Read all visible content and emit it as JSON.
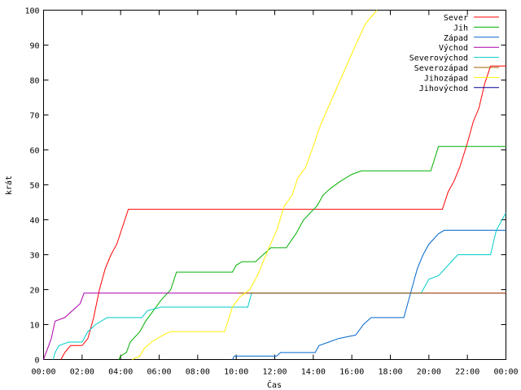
{
  "chart_data": {
    "type": "line",
    "title": "",
    "xlabel": "Čas",
    "ylabel": "krát",
    "xlim": [
      0,
      24
    ],
    "ylim": [
      0,
      100
    ],
    "x_ticks": [
      {
        "value": 0,
        "label": "00:00"
      },
      {
        "value": 2,
        "label": "02:00"
      },
      {
        "value": 4,
        "label": "04:00"
      },
      {
        "value": 6,
        "label": "06:00"
      },
      {
        "value": 8,
        "label": "08:00"
      },
      {
        "value": 10,
        "label": "10:00"
      },
      {
        "value": 12,
        "label": "12:00"
      },
      {
        "value": 14,
        "label": "14:00"
      },
      {
        "value": 16,
        "label": "16:00"
      },
      {
        "value": 18,
        "label": "18:00"
      },
      {
        "value": 20,
        "label": "20:00"
      },
      {
        "value": 22,
        "label": "22:00"
      },
      {
        "value": 24,
        "label": "00:00"
      }
    ],
    "y_ticks": [
      {
        "value": 0,
        "label": "0"
      },
      {
        "value": 10,
        "label": "10"
      },
      {
        "value": 20,
        "label": "20"
      },
      {
        "value": 30,
        "label": "30"
      },
      {
        "value": 40,
        "label": "40"
      },
      {
        "value": 50,
        "label": "50"
      },
      {
        "value": 60,
        "label": "60"
      },
      {
        "value": 70,
        "label": "70"
      },
      {
        "value": 80,
        "label": "80"
      },
      {
        "value": 90,
        "label": "90"
      },
      {
        "value": 100,
        "label": "100"
      }
    ],
    "grid": false,
    "legend_position": "top-right",
    "series": [
      {
        "name": "Sever",
        "color": "#ff0000",
        "points": [
          [
            0.9,
            0
          ],
          [
            1.1,
            2
          ],
          [
            1.4,
            4
          ],
          [
            2.0,
            4
          ],
          [
            2.3,
            6
          ],
          [
            2.6,
            12
          ],
          [
            2.9,
            20
          ],
          [
            3.2,
            26
          ],
          [
            3.5,
            30
          ],
          [
            3.8,
            33
          ],
          [
            4.1,
            38
          ],
          [
            4.4,
            43
          ],
          [
            13.2,
            43
          ],
          [
            20.7,
            43
          ],
          [
            21.0,
            48
          ],
          [
            21.3,
            51
          ],
          [
            21.6,
            55
          ],
          [
            22.0,
            62
          ],
          [
            22.3,
            68
          ],
          [
            22.6,
            72
          ],
          [
            22.9,
            79
          ],
          [
            23.2,
            84
          ],
          [
            24,
            84
          ]
        ]
      },
      {
        "name": "Jih",
        "color": "#00b000",
        "points": [
          [
            3.9,
            0
          ],
          [
            4.0,
            1
          ],
          [
            4.3,
            2
          ],
          [
            4.5,
            5
          ],
          [
            5.0,
            8
          ],
          [
            5.3,
            11
          ],
          [
            5.7,
            14
          ],
          [
            6.1,
            17
          ],
          [
            6.6,
            20
          ],
          [
            6.9,
            25
          ],
          [
            9.8,
            25
          ],
          [
            10.0,
            27
          ],
          [
            10.3,
            28
          ],
          [
            11.0,
            28
          ],
          [
            11.4,
            30
          ],
          [
            11.8,
            32
          ],
          [
            12.6,
            32
          ],
          [
            13.1,
            36
          ],
          [
            13.5,
            40
          ],
          [
            14.2,
            44
          ],
          [
            14.5,
            47
          ],
          [
            14.9,
            49
          ],
          [
            15.4,
            51
          ],
          [
            16.0,
            53
          ],
          [
            16.5,
            54
          ],
          [
            20.1,
            54
          ],
          [
            20.5,
            61
          ],
          [
            24,
            61
          ]
        ]
      },
      {
        "name": "Západ",
        "color": "#0066cc",
        "points": [
          [
            9.8,
            0
          ],
          [
            9.9,
            1
          ],
          [
            12.1,
            1
          ],
          [
            12.3,
            2
          ],
          [
            14.1,
            2
          ],
          [
            14.3,
            4
          ],
          [
            14.8,
            5
          ],
          [
            15.3,
            6
          ],
          [
            16.2,
            7
          ],
          [
            16.6,
            10
          ],
          [
            17.0,
            12
          ],
          [
            18.7,
            12
          ],
          [
            19.0,
            18
          ],
          [
            19.4,
            26
          ],
          [
            19.7,
            30
          ],
          [
            20.0,
            33
          ],
          [
            20.5,
            36
          ],
          [
            20.8,
            37
          ],
          [
            24,
            37
          ]
        ]
      },
      {
        "name": "Východ",
        "color": "#aa00aa",
        "points": [
          [
            0,
            0
          ],
          [
            0.2,
            3
          ],
          [
            0.4,
            6
          ],
          [
            0.6,
            11
          ],
          [
            1.1,
            12
          ],
          [
            1.5,
            14
          ],
          [
            1.9,
            16
          ],
          [
            2.1,
            19
          ],
          [
            24,
            19
          ]
        ]
      },
      {
        "name": "Severovýchod",
        "color": "#00cccc",
        "points": [
          [
            0.5,
            0
          ],
          [
            0.6,
            2
          ],
          [
            0.8,
            4
          ],
          [
            1.3,
            5
          ],
          [
            2.0,
            5
          ],
          [
            2.3,
            8
          ],
          [
            2.7,
            10
          ],
          [
            3.3,
            12
          ],
          [
            5.1,
            12
          ],
          [
            5.4,
            14
          ],
          [
            6.1,
            15
          ],
          [
            10.6,
            15
          ],
          [
            10.8,
            19
          ],
          [
            19.6,
            19
          ],
          [
            20.0,
            23
          ],
          [
            20.5,
            24
          ],
          [
            21.0,
            27
          ],
          [
            21.5,
            30
          ],
          [
            23.2,
            30
          ],
          [
            23.5,
            37
          ],
          [
            24,
            42
          ]
        ]
      },
      {
        "name": "Severozápad",
        "color": "#a65d00",
        "points": [
          [
            10.1,
            19
          ],
          [
            24,
            19
          ]
        ]
      },
      {
        "name": "Jihozápad",
        "color": "#ffee00",
        "points": [
          [
            4.6,
            0
          ],
          [
            5.0,
            1
          ],
          [
            5.2,
            3
          ],
          [
            5.6,
            5
          ],
          [
            6.2,
            7
          ],
          [
            6.6,
            8
          ],
          [
            9.4,
            8
          ],
          [
            9.8,
            15
          ],
          [
            10.2,
            18
          ],
          [
            10.7,
            20
          ],
          [
            11.1,
            24
          ],
          [
            11.4,
            28
          ],
          [
            11.7,
            32
          ],
          [
            12.1,
            37
          ],
          [
            12.5,
            44
          ],
          [
            12.9,
            47
          ],
          [
            13.2,
            52
          ],
          [
            13.6,
            55
          ],
          [
            14.0,
            61
          ],
          [
            14.3,
            66
          ],
          [
            14.6,
            70
          ],
          [
            15.0,
            75
          ],
          [
            15.4,
            80
          ],
          [
            15.8,
            85
          ],
          [
            16.2,
            90
          ],
          [
            16.7,
            96
          ],
          [
            17.3,
            100
          ]
        ]
      },
      {
        "name": "Jihovýchod",
        "color": "#000099",
        "points": []
      }
    ]
  }
}
